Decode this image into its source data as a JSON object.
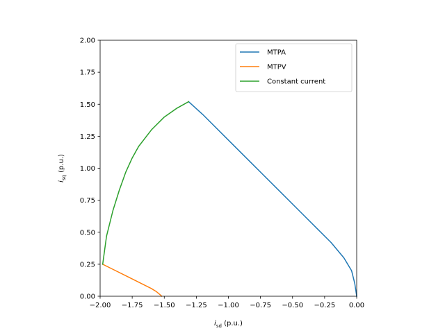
{
  "chart_data": {
    "type": "line",
    "xlabel_main": "i",
    "xlabel_sub": "sd",
    "xlabel_suffix": " (p.u.)",
    "ylabel_main": "i",
    "ylabel_sub": "sq",
    "ylabel_suffix": " (p.u.)",
    "xlim": [
      -2.0,
      0.0
    ],
    "ylim": [
      0.0,
      2.0
    ],
    "xticks": [
      -2.0,
      -1.75,
      -1.5,
      -1.25,
      -1.0,
      -0.75,
      -0.5,
      -0.25,
      0.0
    ],
    "xtick_labels": [
      "−2.00",
      "−1.75",
      "−1.50",
      "−1.25",
      "−1.00",
      "−0.75",
      "−0.50",
      "−0.25",
      "0.00"
    ],
    "yticks": [
      0.0,
      0.25,
      0.5,
      0.75,
      1.0,
      1.25,
      1.5,
      1.75,
      2.0
    ],
    "ytick_labels": [
      "0.00",
      "0.25",
      "0.50",
      "0.75",
      "1.00",
      "1.25",
      "1.50",
      "1.75",
      "2.00"
    ],
    "grid": false,
    "legend_position": "top-right",
    "series": [
      {
        "name": "MTPA",
        "color": "#1f77b4",
        "x": [
          0.0,
          -0.015,
          -0.04,
          -0.1,
          -0.2,
          -0.3,
          -0.45,
          -0.6,
          -0.8,
          -1.0,
          -1.2,
          -1.31
        ],
        "y": [
          0.0,
          0.1,
          0.2,
          0.3,
          0.42,
          0.52,
          0.67,
          0.82,
          1.02,
          1.22,
          1.42,
          1.52
        ]
      },
      {
        "name": "MTPV",
        "color": "#ff7f0e",
        "x": [
          -1.98,
          -1.9,
          -1.8,
          -1.7,
          -1.6,
          -1.56,
          -1.53,
          -1.52
        ],
        "y": [
          0.25,
          0.21,
          0.16,
          0.11,
          0.06,
          0.035,
          0.01,
          0.0
        ]
      },
      {
        "name": "Constant current",
        "color": "#2ca02c",
        "x": [
          -1.98,
          -1.95,
          -1.9,
          -1.85,
          -1.8,
          -1.75,
          -1.7,
          -1.6,
          -1.5,
          -1.4,
          -1.31
        ],
        "y": [
          0.25,
          0.47,
          0.67,
          0.83,
          0.97,
          1.08,
          1.17,
          1.3,
          1.4,
          1.47,
          1.52
        ]
      }
    ]
  }
}
